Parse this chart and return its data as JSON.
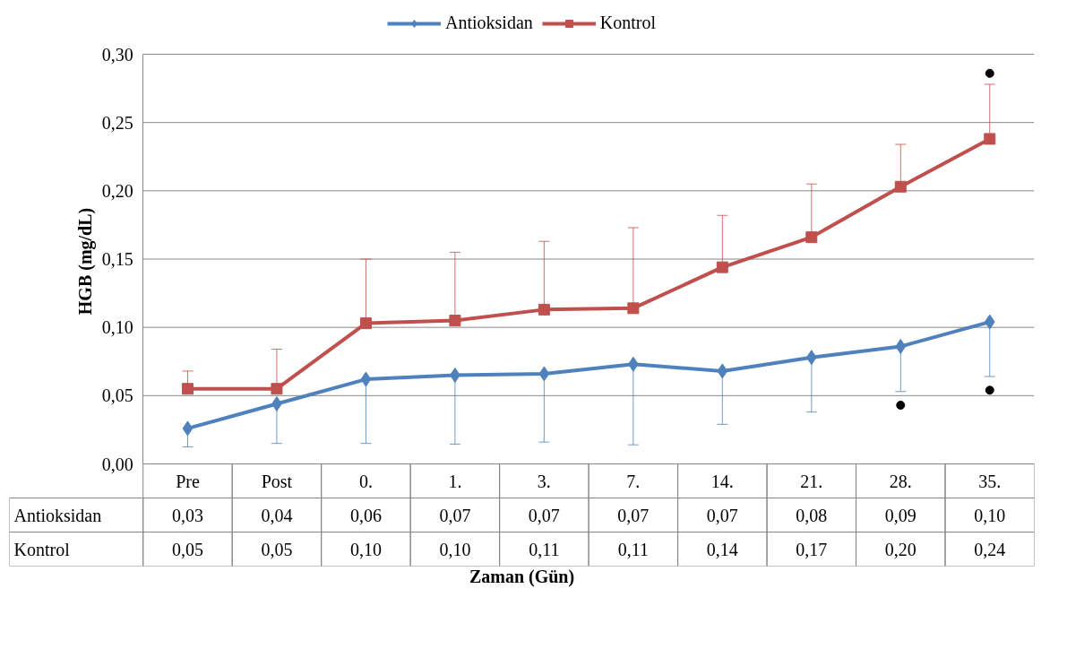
{
  "chart_data": {
    "type": "line",
    "xlabel": "Zaman (Gün)",
    "ylabel": "HGB  (mg/dL)",
    "categories": [
      "Pre",
      "Post",
      "0.",
      "1.",
      "3.",
      "7.",
      "14.",
      "21.",
      "28.",
      "35."
    ],
    "ylim": [
      0,
      0.3
    ],
    "yticks": [
      {
        "value": 0,
        "label": "0,00"
      },
      {
        "value": 0.05,
        "label": "0,05"
      },
      {
        "value": 0.1,
        "label": "0,10"
      },
      {
        "value": 0.15,
        "label": "0,15"
      },
      {
        "value": 0.2,
        "label": "0,20"
      },
      {
        "value": 0.25,
        "label": "0,25"
      },
      {
        "value": 0.3,
        "label": "0,30"
      }
    ],
    "grid": "y",
    "legend": "top",
    "series": [
      {
        "name": "Antioksidan",
        "color": "#4f81bd",
        "marker": "diamond",
        "values": [
          0.026,
          0.044,
          0.062,
          0.065,
          0.066,
          0.073,
          0.068,
          0.078,
          0.086,
          0.104
        ],
        "errors": [
          [
            0.0125,
            0.026
          ],
          [
            0.015,
            0.044
          ],
          [
            0.015,
            0.062
          ],
          [
            0.0145,
            0.065
          ],
          [
            0.016,
            0.066
          ],
          [
            0.014,
            0.073
          ],
          [
            0.029,
            0.068
          ],
          [
            0.038,
            0.078
          ],
          [
            0.053,
            0.086
          ],
          [
            0.064,
            0.104
          ]
        ],
        "value_labels": [
          "0,03",
          "0,04",
          "0,06",
          "0,07",
          "0,07",
          "0,07",
          "0,07",
          "0,08",
          "0,09",
          "0,10"
        ]
      },
      {
        "name": "Kontrol",
        "color": "#c0504d",
        "marker": "square",
        "values": [
          0.055,
          0.055,
          0.103,
          0.105,
          0.113,
          0.114,
          0.144,
          0.166,
          0.203,
          0.238
        ],
        "errors": [
          [
            0.055,
            0.068
          ],
          [
            0.055,
            0.084
          ],
          [
            0.103,
            0.15
          ],
          [
            0.105,
            0.155
          ],
          [
            0.113,
            0.163
          ],
          [
            0.114,
            0.173
          ],
          [
            0.144,
            0.182
          ],
          [
            0.166,
            0.205
          ],
          [
            0.203,
            0.234
          ],
          [
            0.238,
            0.278
          ]
        ],
        "value_labels": [
          "0,05",
          "0,05",
          "0,10",
          "0,10",
          "0,11",
          "0,11",
          "0,14",
          "0,17",
          "0,20",
          "0,24"
        ]
      },
      {
        "type": "scatter",
        "color": "#000000",
        "marker": "circle",
        "x": [
          "28.",
          "35.",
          "35."
        ],
        "values": [
          0.043,
          0.286,
          0.054
        ]
      }
    ]
  }
}
